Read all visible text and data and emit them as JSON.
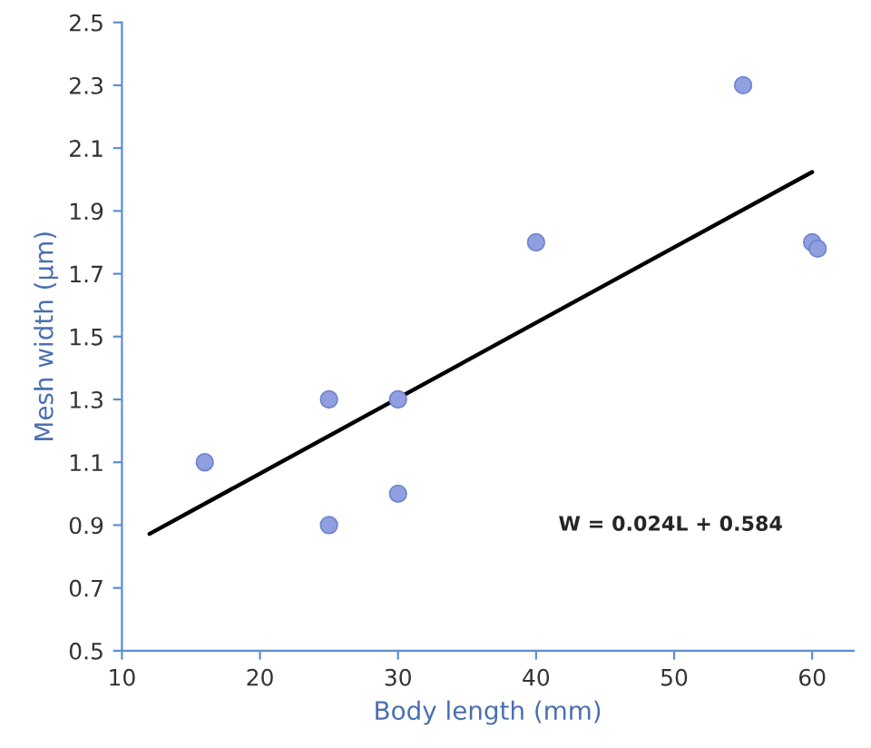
{
  "chart_data": {
    "type": "scatter",
    "xlabel": "Body length (mm)",
    "ylabel": "Mesh width (µm)",
    "xlim": [
      10,
      63
    ],
    "xticks": [
      10,
      20,
      30,
      40,
      50,
      60
    ],
    "ylim": [
      0.5,
      2.5
    ],
    "yticks": [
      0.5,
      0.7,
      0.9,
      1.1,
      1.3,
      1.5,
      1.7,
      1.9,
      2.1,
      2.3,
      2.5
    ],
    "grid": false,
    "series": [
      {
        "marker": "circle",
        "color": "#8f9fe0",
        "x": [
          16,
          25,
          25,
          30,
          30,
          40,
          55,
          60,
          60.4
        ],
        "values": [
          1.1,
          1.3,
          0.9,
          1.3,
          1.0,
          1.8,
          2.3,
          1.8,
          1.78
        ]
      },
      {
        "type": "line",
        "color": "#000000",
        "line_style": "solid",
        "x": [
          12,
          60
        ],
        "values": [
          0.872,
          2.024
        ]
      }
    ],
    "annotations": [
      "W = 0.024L + 0.584"
    ]
  }
}
